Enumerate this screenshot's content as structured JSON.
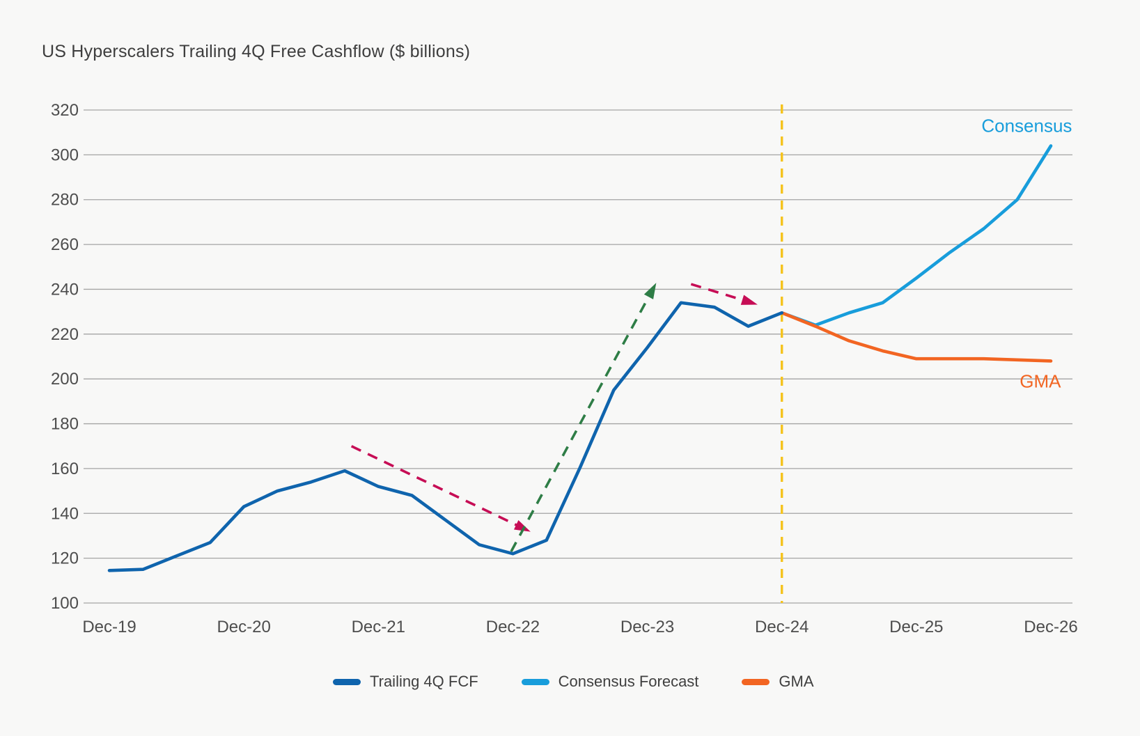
{
  "title": "US Hyperscalers Trailing 4Q Free Cashflow ($ billions)",
  "style": {
    "background": "#f8f8f7",
    "grid_color": "#a4a4a4",
    "tick_color": "#4d4d4d",
    "title_color": "#3e3e3e"
  },
  "chart_data": {
    "type": "line",
    "title": "US Hyperscalers Trailing 4Q Free Cashflow ($ billions)",
    "xlabel": "",
    "ylabel": "$ billions",
    "ylim": [
      100,
      320
    ],
    "y_ticks": [
      100,
      120,
      140,
      160,
      180,
      200,
      220,
      240,
      260,
      280,
      300,
      320
    ],
    "x_tick_labels": [
      "Dec-19",
      "Dec-20",
      "Dec-21",
      "Dec-22",
      "Dec-23",
      "Dec-24",
      "Dec-25",
      "Dec-26"
    ],
    "x_unit": "quarters since Dec-19 (4 quarters per tick)",
    "grid": "horizontal",
    "legend_position": "bottom",
    "series": [
      {
        "name": "Trailing 4Q FCF",
        "color": "#0f64ad",
        "start_quarter": 0,
        "quarters": [
          "Dec-19",
          "Mar-20",
          "Jun-20",
          "Sep-20",
          "Dec-20",
          "Mar-21",
          "Jun-21",
          "Sep-21",
          "Dec-21",
          "Mar-22",
          "Jun-22",
          "Sep-22",
          "Dec-22",
          "Mar-23",
          "Jun-23",
          "Sep-23",
          "Dec-23",
          "Mar-24",
          "Jun-24",
          "Sep-24",
          "Dec-24"
        ],
        "values": [
          114.5,
          115,
          121,
          127,
          143,
          150,
          154,
          159,
          152,
          148,
          137,
          126,
          122,
          128,
          160.5,
          195,
          214,
          234,
          232,
          223.5,
          229.5
        ]
      },
      {
        "name": "Consensus Forecast",
        "color": "#189ddb",
        "start_quarter": 20,
        "quarters": [
          "Dec-24",
          "Mar-25",
          "Jun-25",
          "Sep-25",
          "Dec-25",
          "Mar-26",
          "Jun-26",
          "Sep-26",
          "Dec-26"
        ],
        "values": [
          229.5,
          224,
          229.5,
          234,
          245,
          256.5,
          267,
          280,
          304
        ]
      },
      {
        "name": "GMA",
        "color": "#f26522",
        "start_quarter": 20,
        "quarters": [
          "Dec-24",
          "Mar-25",
          "Jun-25",
          "Sep-25",
          "Dec-25",
          "Mar-26",
          "Jun-26",
          "Sep-26",
          "Dec-26"
        ],
        "values": [
          229.5,
          223.5,
          217,
          212.5,
          209,
          209,
          209,
          208.5,
          208
        ]
      }
    ],
    "forecast_divider": {
      "x_quarter": 20,
      "at_label": "Dec-24",
      "color": "#f5c31d",
      "style": "dashed"
    },
    "line_labels": [
      {
        "text": "Consensus",
        "color": "#189ddb",
        "x_quarter": 28.63,
        "value": 313,
        "anchor": "end"
      },
      {
        "text": "GMA",
        "color": "#f26522",
        "x_quarter": 28.3,
        "value": 199,
        "anchor": "end"
      }
    ],
    "arrows": [
      {
        "color": "#c60d55",
        "style": "dashed",
        "from": {
          "x_quarter": 7.2,
          "value": 170
        },
        "to": {
          "x_quarter": 12.5,
          "value": 132
        }
      },
      {
        "color": "#2e7d46",
        "style": "dashed",
        "from": {
          "x_quarter": 11.95,
          "value": 123
        },
        "to": {
          "x_quarter": 16.25,
          "value": 242.5
        }
      },
      {
        "color": "#c60d55",
        "style": "dashed",
        "from": {
          "x_quarter": 17.3,
          "value": 242.3
        },
        "to": {
          "x_quarter": 19.25,
          "value": 233.3
        }
      }
    ]
  }
}
